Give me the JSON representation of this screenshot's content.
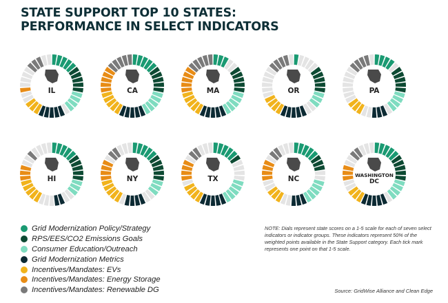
{
  "title": {
    "line1": "STATE SUPPORT TOP 10 STATES:",
    "line2": "PERFORMANCE IN SELECT INDICATORS"
  },
  "legend": [
    {
      "label": "Grid Modernization Policy/Strategy",
      "color": "#1a9a72"
    },
    {
      "label": "RPS/EES/CO2 Emissions Goals",
      "color": "#0d4a33"
    },
    {
      "label": "Consumer Education/Outreach",
      "color": "#7fdcc0"
    },
    {
      "label": "Grid Modernization Metrics",
      "color": "#0c2a33"
    },
    {
      "label": "Incentives/Mandates: EVs",
      "color": "#f1b31c"
    },
    {
      "label": "Incentives/Mandates: Energy Storage",
      "color": "#e88c16"
    },
    {
      "label": "Incentives/Mandates: Renewable DG",
      "color": "#7a7a7a"
    }
  ],
  "note": "NOTE: Dials represent state scores on a 1-5 scale for each of seven select indicators or indicator groups. These indicators represent 50% of the weighted points available in the State Support category. Each tick mark represents one point on that 1-5 scale.",
  "source": "Source: GridWise Alliance and Clean Edge",
  "chart_data": {
    "type": "dial",
    "scale": [
      1,
      5
    ],
    "ticks_per_indicator": 5,
    "indicators": [
      "Grid Modernization Policy/Strategy",
      "RPS/EES/CO2 Emissions Goals",
      "Consumer Education/Outreach",
      "Grid Modernization Metrics",
      "Incentives/Mandates: EVs",
      "Incentives/Mandates: Energy Storage",
      "Incentives/Mandates: Renewable DG"
    ],
    "states": [
      {
        "label": "IL",
        "scores": [
          5,
          5,
          4,
          5,
          3,
          1,
          3
        ]
      },
      {
        "label": "CA",
        "scores": [
          5,
          5,
          5,
          5,
          5,
          5,
          5
        ]
      },
      {
        "label": "MA",
        "scores": [
          3,
          5,
          5,
          5,
          5,
          5,
          5
        ]
      },
      {
        "label": "OR",
        "scores": [
          1,
          5,
          3,
          5,
          4,
          0,
          4
        ]
      },
      {
        "label": "PA",
        "scores": [
          4,
          5,
          4,
          3,
          3,
          0,
          4
        ]
      },
      {
        "label": "HI",
        "scores": [
          5,
          5,
          3,
          2,
          5,
          3,
          1
        ]
      },
      {
        "label": "NY",
        "scores": [
          5,
          5,
          3,
          4,
          5,
          4,
          2
        ]
      },
      {
        "label": "TX",
        "scores": [
          5,
          1,
          5,
          5,
          4,
          4,
          2
        ]
      },
      {
        "label": "NC",
        "scores": [
          5,
          3,
          5,
          3,
          3,
          4,
          2
        ]
      },
      {
        "label": "WASHINGTON DC",
        "line1": "WASHINGTON",
        "line2": "DC",
        "scores": [
          5,
          5,
          4,
          5,
          3,
          3,
          2
        ]
      }
    ]
  }
}
